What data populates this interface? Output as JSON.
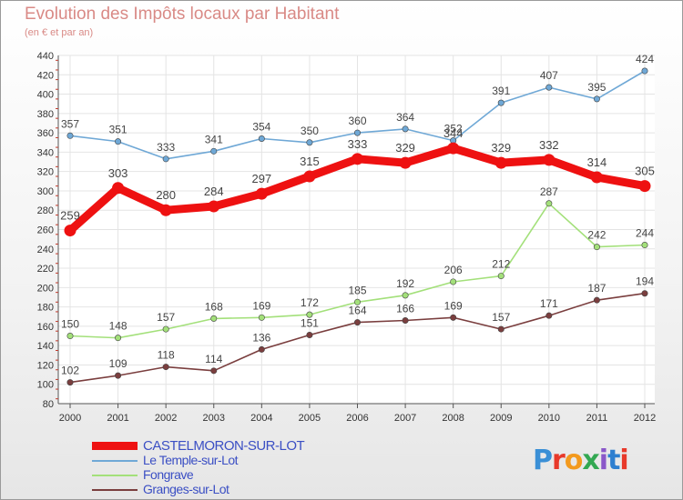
{
  "header": {
    "title": "Evolution des Impôts locaux par Habitant",
    "subtitle": "(en € et par an)"
  },
  "chart_data": {
    "type": "line",
    "title": "Evolution des Impôts locaux par Habitant",
    "subtitle": "(en € et par an)",
    "xlabel": "",
    "ylabel": "",
    "ylim": [
      80,
      440
    ],
    "y_ticks": [
      80,
      100,
      120,
      140,
      160,
      180,
      200,
      220,
      240,
      260,
      280,
      300,
      320,
      340,
      360,
      380,
      400,
      420,
      440
    ],
    "x": [
      "2000",
      "2001",
      "2002",
      "2003",
      "2004",
      "2005",
      "2006",
      "2007",
      "2008",
      "2009",
      "2010",
      "2011",
      "2012"
    ],
    "grid": true,
    "legend_position": "bottom-left",
    "series": [
      {
        "name": "Le Temple-sur-Lot",
        "color": "#6fa8d6",
        "values": [
          357,
          351,
          333,
          341,
          354,
          350,
          360,
          364,
          352,
          391,
          407,
          395,
          424
        ]
      },
      {
        "name": "Fongrave",
        "color": "#a3e07a",
        "values": [
          150,
          148,
          157,
          168,
          169,
          172,
          185,
          192,
          206,
          212,
          287,
          242,
          244
        ]
      },
      {
        "name": "Granges-sur-Lot",
        "color": "#7a3e3e",
        "values": [
          102,
          109,
          118,
          114,
          136,
          151,
          164,
          166,
          169,
          157,
          171,
          187,
          194
        ]
      },
      {
        "name": "CASTELMORON-SUR-LOT",
        "color": "#ee1111",
        "values": [
          259,
          303,
          280,
          284,
          297,
          315,
          333,
          329,
          344,
          329,
          332,
          314,
          305
        ]
      }
    ]
  },
  "legend": {
    "items": [
      {
        "label": "CASTELMORON-SUR-LOT",
        "color": "#ee1111"
      },
      {
        "label": "Le Temple-sur-Lot",
        "color": "#6fa8d6"
      },
      {
        "label": "Fongrave",
        "color": "#a3e07a"
      },
      {
        "label": "Granges-sur-Lot",
        "color": "#7a3e3e"
      }
    ]
  },
  "logo": {
    "text": "Proxiti",
    "letter_colors": [
      "#3a8fd6",
      "#e8392a",
      "#f39a1e",
      "#33a852",
      "#8a57c9",
      "#2e7fd0",
      "#e8392a"
    ]
  }
}
